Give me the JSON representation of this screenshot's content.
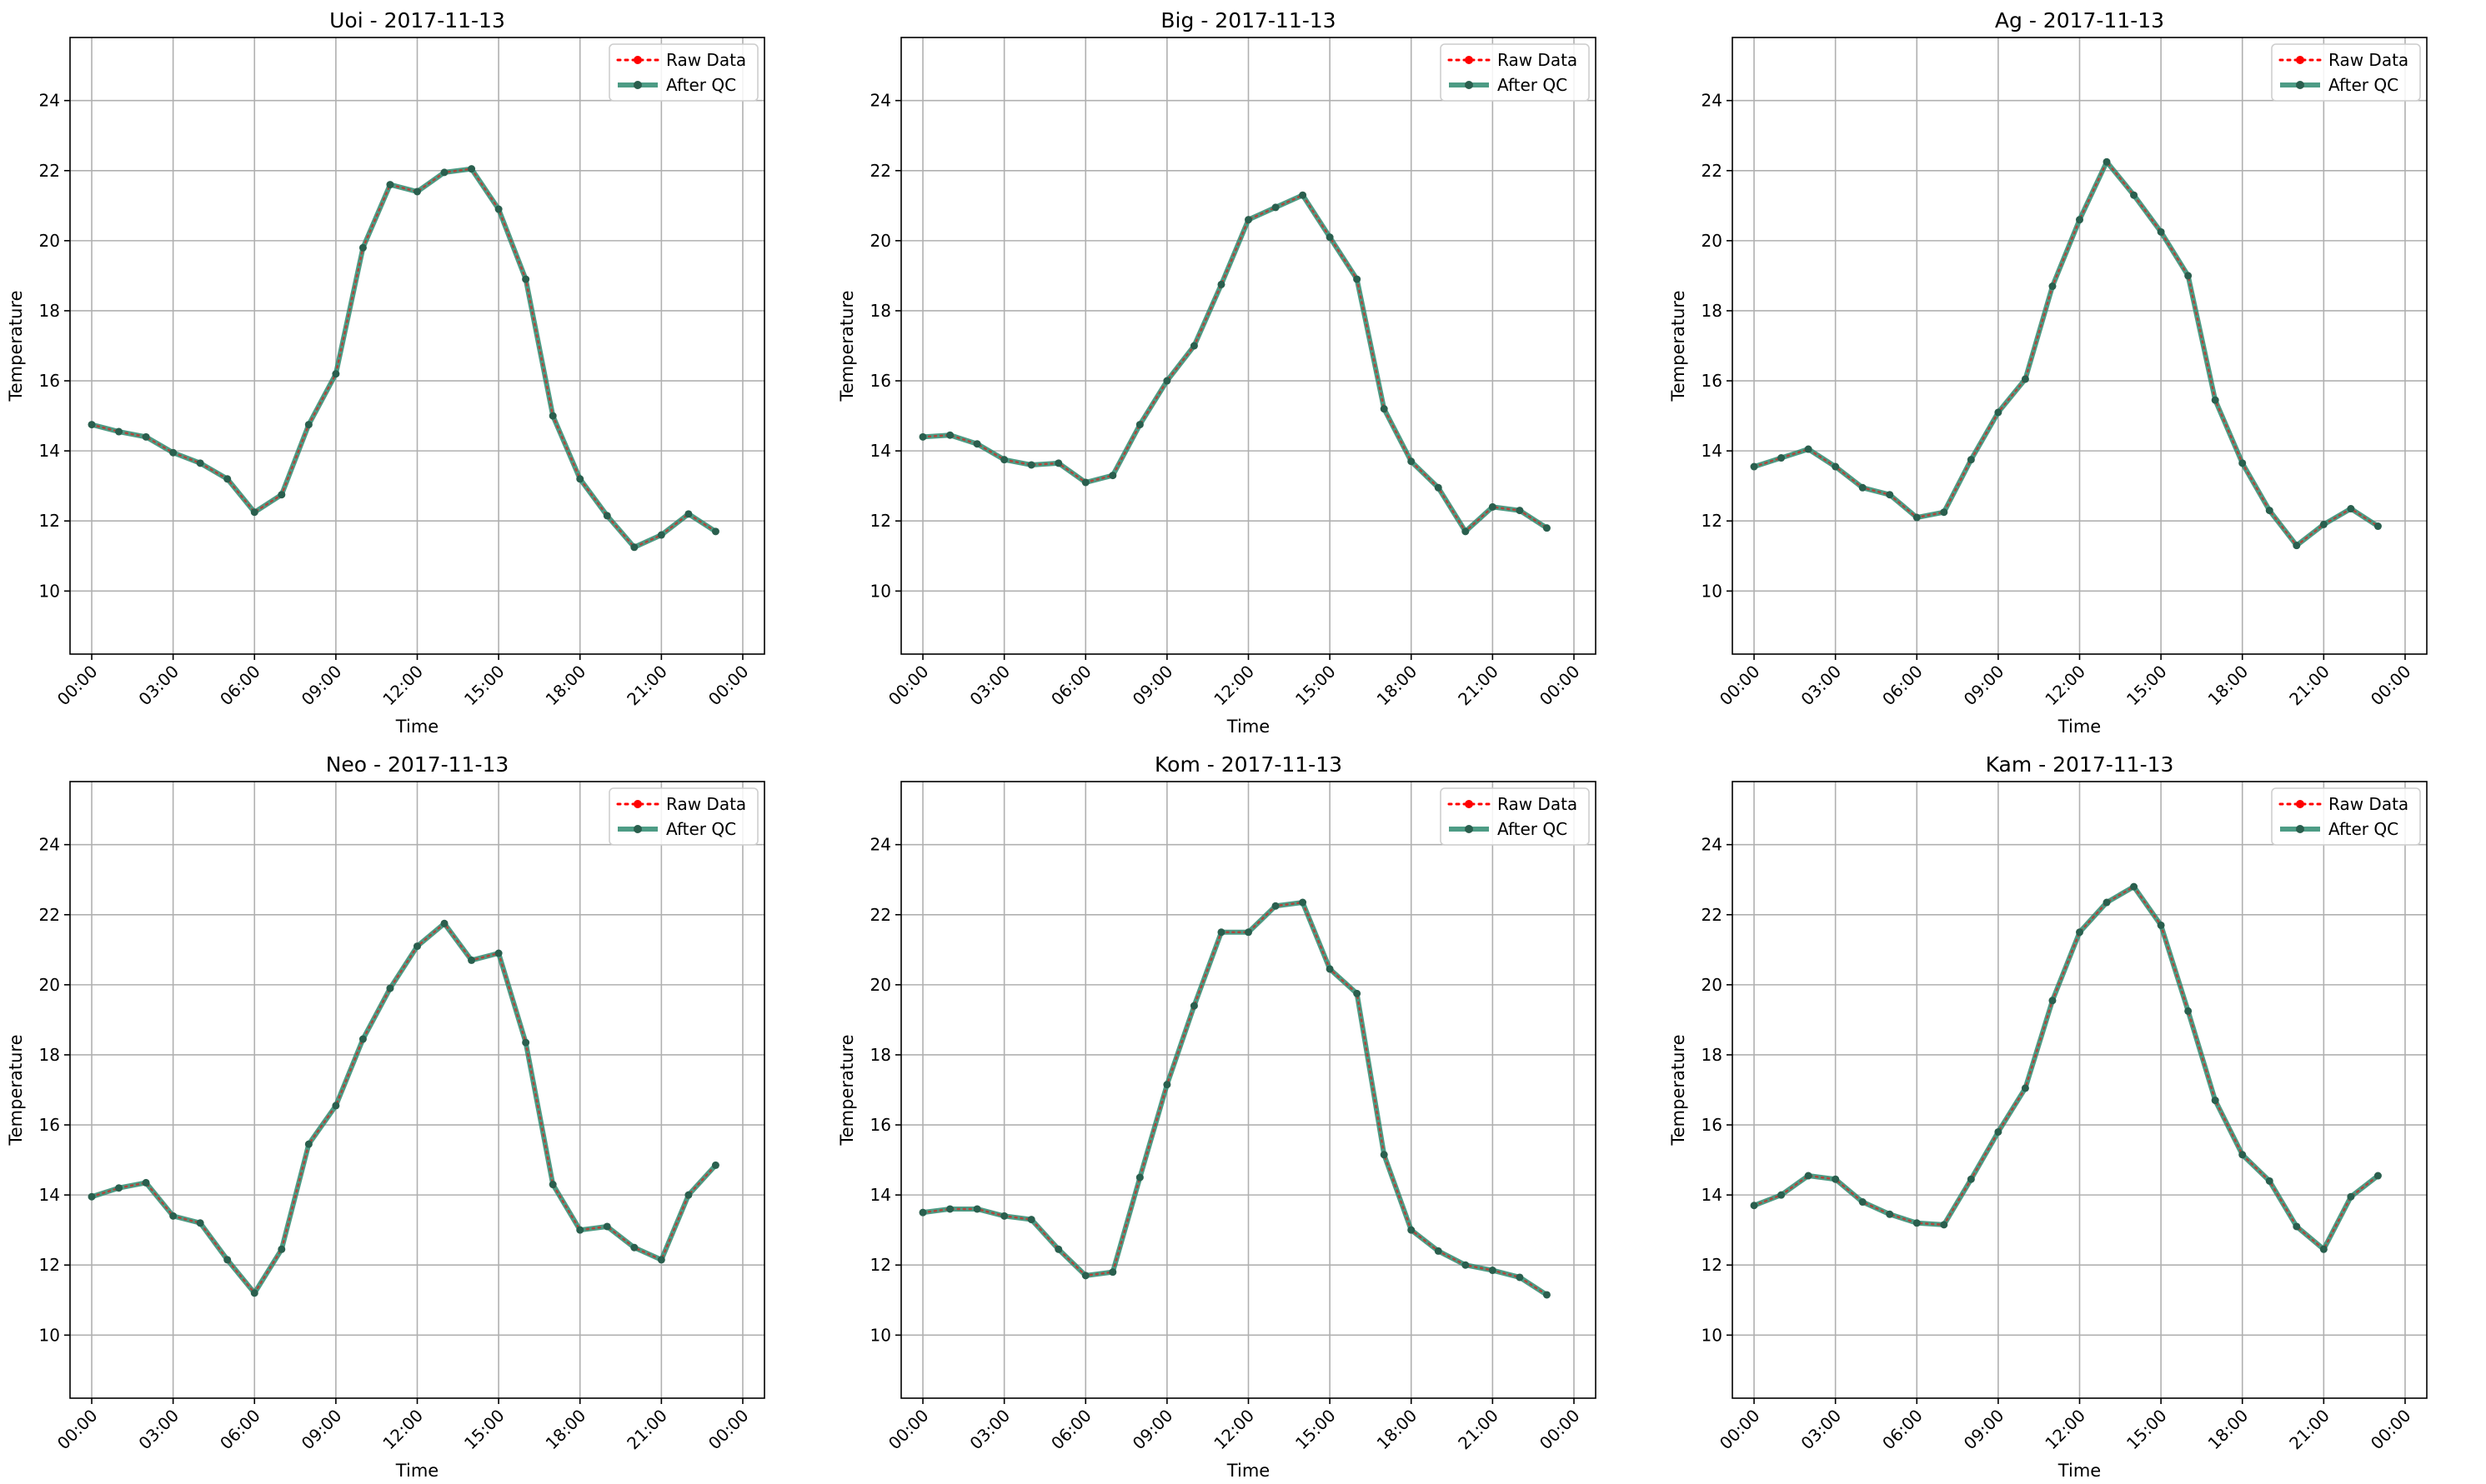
{
  "figure": {
    "colors": {
      "raw": "#ff0000",
      "qc": "#2e8b70",
      "marker": "#2a5f4e",
      "grid": "#b0b0b0"
    }
  },
  "chart_data": [
    {
      "type": "line",
      "title": "Uoi - 2017-11-13",
      "xlabel": "Time",
      "ylabel": "Temperature",
      "ylim": [
        8.2,
        25.8
      ],
      "xlim": [
        "23:12",
        "24:48"
      ],
      "x_ticks": [
        "00:00",
        "03:00",
        "06:00",
        "09:00",
        "12:00",
        "15:00",
        "18:00",
        "21:00",
        "00:00"
      ],
      "y_ticks": [
        10,
        12,
        14,
        16,
        18,
        20,
        22,
        24
      ],
      "grid": true,
      "legend_position": "top-right",
      "x": [
        "00:00",
        "01:00",
        "02:00",
        "03:00",
        "04:00",
        "05:00",
        "06:00",
        "07:00",
        "08:00",
        "09:00",
        "10:00",
        "11:00",
        "12:00",
        "13:00",
        "14:00",
        "15:00",
        "16:00",
        "17:00",
        "18:00",
        "19:00",
        "20:00",
        "21:00",
        "22:00",
        "23:00"
      ],
      "series": [
        {
          "name": "Raw Data",
          "values": [
            14.75,
            14.55,
            14.4,
            13.95,
            13.65,
            13.2,
            12.25,
            12.75,
            14.75,
            16.2,
            19.8,
            21.6,
            21.4,
            21.95,
            22.05,
            20.9,
            18.9,
            15.0,
            13.2,
            12.15,
            11.25,
            11.6,
            12.2,
            11.7
          ]
        },
        {
          "name": "After QC",
          "values": [
            14.75,
            14.55,
            14.4,
            13.95,
            13.65,
            13.2,
            12.25,
            12.75,
            14.75,
            16.2,
            19.8,
            21.6,
            21.4,
            21.95,
            22.05,
            20.9,
            18.9,
            15.0,
            13.2,
            12.15,
            11.25,
            11.6,
            12.2,
            11.7
          ]
        }
      ]
    },
    {
      "type": "line",
      "title": "Big - 2017-11-13",
      "xlabel": "Time",
      "ylabel": "Temperature",
      "ylim": [
        8.2,
        25.8
      ],
      "xlim": [
        "23:12",
        "24:48"
      ],
      "x_ticks": [
        "00:00",
        "03:00",
        "06:00",
        "09:00",
        "12:00",
        "15:00",
        "18:00",
        "21:00",
        "00:00"
      ],
      "y_ticks": [
        10,
        12,
        14,
        16,
        18,
        20,
        22,
        24
      ],
      "grid": true,
      "legend_position": "top-right",
      "x": [
        "00:00",
        "01:00",
        "02:00",
        "03:00",
        "04:00",
        "05:00",
        "06:00",
        "07:00",
        "08:00",
        "09:00",
        "10:00",
        "11:00",
        "12:00",
        "13:00",
        "14:00",
        "15:00",
        "16:00",
        "17:00",
        "18:00",
        "19:00",
        "20:00",
        "21:00",
        "22:00",
        "23:00"
      ],
      "series": [
        {
          "name": "Raw Data",
          "values": [
            14.4,
            14.45,
            14.2,
            13.75,
            13.6,
            13.65,
            13.1,
            13.3,
            14.75,
            16.0,
            17.0,
            18.75,
            20.6,
            20.95,
            21.3,
            20.1,
            18.9,
            15.2,
            13.7,
            12.95,
            11.7,
            12.4,
            12.3,
            11.8
          ]
        },
        {
          "name": "After QC",
          "values": [
            14.4,
            14.45,
            14.2,
            13.75,
            13.6,
            13.65,
            13.1,
            13.3,
            14.75,
            16.0,
            17.0,
            18.75,
            20.6,
            20.95,
            21.3,
            20.1,
            18.9,
            15.2,
            13.7,
            12.95,
            11.7,
            12.4,
            12.3,
            11.8
          ]
        }
      ]
    },
    {
      "type": "line",
      "title": "Ag - 2017-11-13",
      "xlabel": "Time",
      "ylabel": "Temperature",
      "ylim": [
        8.2,
        25.8
      ],
      "xlim": [
        "23:12",
        "24:48"
      ],
      "x_ticks": [
        "00:00",
        "03:00",
        "06:00",
        "09:00",
        "12:00",
        "15:00",
        "18:00",
        "21:00",
        "00:00"
      ],
      "y_ticks": [
        10,
        12,
        14,
        16,
        18,
        20,
        22,
        24
      ],
      "grid": true,
      "legend_position": "top-right",
      "x": [
        "00:00",
        "01:00",
        "02:00",
        "03:00",
        "04:00",
        "05:00",
        "06:00",
        "07:00",
        "08:00",
        "09:00",
        "10:00",
        "11:00",
        "12:00",
        "13:00",
        "14:00",
        "15:00",
        "16:00",
        "17:00",
        "18:00",
        "19:00",
        "20:00",
        "21:00",
        "22:00",
        "23:00"
      ],
      "series": [
        {
          "name": "Raw Data",
          "values": [
            13.55,
            13.8,
            14.05,
            13.55,
            12.95,
            12.75,
            12.1,
            12.25,
            13.75,
            15.1,
            16.05,
            18.7,
            20.6,
            22.25,
            21.3,
            20.25,
            19.0,
            15.45,
            13.65,
            12.3,
            11.3,
            11.9,
            12.35,
            11.85
          ]
        },
        {
          "name": "After QC",
          "values": [
            13.55,
            13.8,
            14.05,
            13.55,
            12.95,
            12.75,
            12.1,
            12.25,
            13.75,
            15.1,
            16.05,
            18.7,
            20.6,
            22.25,
            21.3,
            20.25,
            19.0,
            15.45,
            13.65,
            12.3,
            11.3,
            11.9,
            12.35,
            11.85
          ]
        }
      ]
    },
    {
      "type": "line",
      "title": "Neo - 2017-11-13",
      "xlabel": "Time",
      "ylabel": "Temperature",
      "ylim": [
        8.2,
        25.8
      ],
      "xlim": [
        "23:12",
        "24:48"
      ],
      "x_ticks": [
        "00:00",
        "03:00",
        "06:00",
        "09:00",
        "12:00",
        "15:00",
        "18:00",
        "21:00",
        "00:00"
      ],
      "y_ticks": [
        10,
        12,
        14,
        16,
        18,
        20,
        22,
        24
      ],
      "grid": true,
      "legend_position": "top-right",
      "x": [
        "00:00",
        "01:00",
        "02:00",
        "03:00",
        "04:00",
        "05:00",
        "06:00",
        "07:00",
        "08:00",
        "09:00",
        "10:00",
        "11:00",
        "12:00",
        "13:00",
        "14:00",
        "15:00",
        "16:00",
        "17:00",
        "18:00",
        "19:00",
        "20:00",
        "21:00",
        "22:00",
        "23:00"
      ],
      "series": [
        {
          "name": "Raw Data",
          "values": [
            13.95,
            14.2,
            14.35,
            13.4,
            13.2,
            12.15,
            11.2,
            12.45,
            15.45,
            16.55,
            18.45,
            19.9,
            21.1,
            21.75,
            20.7,
            20.9,
            18.35,
            14.3,
            13.0,
            13.1,
            12.5,
            12.15,
            14.0,
            14.85
          ]
        },
        {
          "name": "After QC",
          "values": [
            13.95,
            14.2,
            14.35,
            13.4,
            13.2,
            12.15,
            11.2,
            12.45,
            15.45,
            16.55,
            18.45,
            19.9,
            21.1,
            21.75,
            20.7,
            20.9,
            18.35,
            14.3,
            13.0,
            13.1,
            12.5,
            12.15,
            14.0,
            14.85
          ]
        }
      ]
    },
    {
      "type": "line",
      "title": "Kom - 2017-11-13",
      "xlabel": "Time",
      "ylabel": "Temperature",
      "ylim": [
        8.2,
        25.8
      ],
      "xlim": [
        "23:12",
        "24:48"
      ],
      "x_ticks": [
        "00:00",
        "03:00",
        "06:00",
        "09:00",
        "12:00",
        "15:00",
        "18:00",
        "21:00",
        "00:00"
      ],
      "y_ticks": [
        10,
        12,
        14,
        16,
        18,
        20,
        22,
        24
      ],
      "grid": true,
      "legend_position": "top-right",
      "x": [
        "00:00",
        "01:00",
        "02:00",
        "03:00",
        "04:00",
        "05:00",
        "06:00",
        "07:00",
        "08:00",
        "09:00",
        "10:00",
        "11:00",
        "12:00",
        "13:00",
        "14:00",
        "15:00",
        "16:00",
        "17:00",
        "18:00",
        "19:00",
        "20:00",
        "21:00",
        "22:00",
        "23:00"
      ],
      "series": [
        {
          "name": "Raw Data",
          "values": [
            13.5,
            13.6,
            13.6,
            13.4,
            13.3,
            12.45,
            11.7,
            11.8,
            14.5,
            17.15,
            19.4,
            21.5,
            21.5,
            22.25,
            22.35,
            20.45,
            19.75,
            15.15,
            13.0,
            12.4,
            12.0,
            11.85,
            11.65,
            11.15
          ]
        },
        {
          "name": "After QC",
          "values": [
            13.5,
            13.6,
            13.6,
            13.4,
            13.3,
            12.45,
            11.7,
            11.8,
            14.5,
            17.15,
            19.4,
            21.5,
            21.5,
            22.25,
            22.35,
            20.45,
            19.75,
            15.15,
            13.0,
            12.4,
            12.0,
            11.85,
            11.65,
            11.15
          ]
        }
      ]
    },
    {
      "type": "line",
      "title": "Kam - 2017-11-13",
      "xlabel": "Time",
      "ylabel": "Temperature",
      "ylim": [
        8.2,
        25.8
      ],
      "xlim": [
        "23:12",
        "24:48"
      ],
      "x_ticks": [
        "00:00",
        "03:00",
        "06:00",
        "09:00",
        "12:00",
        "15:00",
        "18:00",
        "21:00",
        "00:00"
      ],
      "y_ticks": [
        10,
        12,
        14,
        16,
        18,
        20,
        22,
        24
      ],
      "grid": true,
      "legend_position": "top-right",
      "x": [
        "00:00",
        "01:00",
        "02:00",
        "03:00",
        "04:00",
        "05:00",
        "06:00",
        "07:00",
        "08:00",
        "09:00",
        "10:00",
        "11:00",
        "12:00",
        "13:00",
        "14:00",
        "15:00",
        "16:00",
        "17:00",
        "18:00",
        "19:00",
        "20:00",
        "21:00",
        "22:00",
        "23:00"
      ],
      "series": [
        {
          "name": "Raw Data",
          "values": [
            13.7,
            14.0,
            14.55,
            14.45,
            13.8,
            13.45,
            13.2,
            13.15,
            14.45,
            15.8,
            17.05,
            19.55,
            21.5,
            22.35,
            22.8,
            21.7,
            19.25,
            16.7,
            15.15,
            14.4,
            13.1,
            12.45,
            13.95,
            14.55
          ]
        },
        {
          "name": "After QC",
          "values": [
            13.7,
            14.0,
            14.55,
            14.45,
            13.8,
            13.45,
            13.2,
            13.15,
            14.45,
            15.8,
            17.05,
            19.55,
            21.5,
            22.35,
            22.8,
            21.7,
            19.25,
            16.7,
            15.15,
            14.4,
            13.1,
            12.45,
            13.95,
            14.55
          ]
        }
      ]
    }
  ]
}
